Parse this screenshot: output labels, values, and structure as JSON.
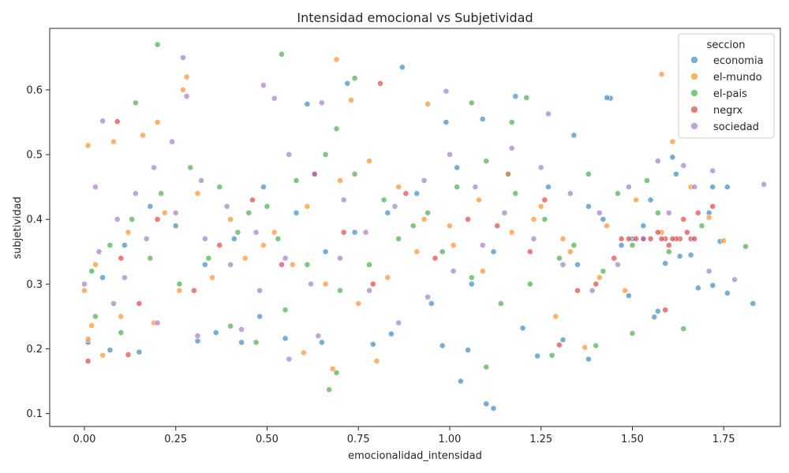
{
  "chart_data": {
    "type": "scatter",
    "title": "Intensidad emocional vs Subjetividad",
    "xlabel": "emocionalidad_intensidad",
    "ylabel": "subjetividad",
    "xlim": [
      -0.095,
      1.905
    ],
    "ylim": [
      0.08,
      0.695
    ],
    "xticks": [
      0.0,
      0.25,
      0.5,
      0.75,
      1.0,
      1.25,
      1.5,
      1.75
    ],
    "xtick_labels": [
      "0.00",
      "0.25",
      "0.50",
      "0.75",
      "1.00",
      "1.25",
      "1.50",
      "1.75"
    ],
    "yticks": [
      0.1,
      0.2,
      0.3,
      0.4,
      0.5,
      0.6
    ],
    "ytick_labels": [
      "0.1",
      "0.2",
      "0.3",
      "0.4",
      "0.5",
      "0.6"
    ],
    "grid": false,
    "legend": {
      "title": "seccion",
      "placement": "top-right"
    },
    "point_opacity": 0.6,
    "series": [
      {
        "name": "economia",
        "color": "#1f77b4",
        "points": [
          [
            0.87,
            0.635
          ],
          [
            0.72,
            0.61
          ],
          [
            1.18,
            0.59
          ],
          [
            1.44,
            0.587
          ],
          [
            1.43,
            0.588
          ],
          [
            0.61,
            0.578
          ],
          [
            0.99,
            0.55
          ],
          [
            1.09,
            0.555
          ],
          [
            1.34,
            0.53
          ],
          [
            1.61,
            0.496
          ],
          [
            1.62,
            0.47
          ],
          [
            1.72,
            0.45
          ],
          [
            1.76,
            0.45
          ],
          [
            1.71,
            0.41
          ],
          [
            1.74,
            0.366
          ],
          [
            1.66,
            0.345
          ],
          [
            1.72,
            0.298
          ],
          [
            1.76,
            0.286
          ],
          [
            1.83,
            0.27
          ],
          [
            1.57,
            0.258
          ],
          [
            1.49,
            0.282
          ],
          [
            1.38,
            0.184
          ],
          [
            1.31,
            0.214
          ],
          [
            1.24,
            0.189
          ],
          [
            1.05,
            0.198
          ],
          [
            1.03,
            0.15
          ],
          [
            1.1,
            0.115
          ],
          [
            1.12,
            0.108
          ],
          [
            0.98,
            0.205
          ],
          [
            0.84,
            0.223
          ],
          [
            0.79,
            0.207
          ],
          [
            0.65,
            0.21
          ],
          [
            0.55,
            0.216
          ],
          [
            0.43,
            0.21
          ],
          [
            0.31,
            0.212
          ],
          [
            0.07,
            0.198
          ],
          [
            0.01,
            0.21
          ],
          [
            0.15,
            0.195
          ],
          [
            0.36,
            0.225
          ],
          [
            0.48,
            0.25
          ],
          [
            1.2,
            0.232
          ],
          [
            1.56,
            0.249
          ],
          [
            1.59,
            0.332
          ],
          [
            1.63,
            0.343
          ],
          [
            1.68,
            0.294
          ],
          [
            1.53,
            0.39
          ],
          [
            1.47,
            0.36
          ],
          [
            1.38,
            0.42
          ],
          [
            1.27,
            0.45
          ],
          [
            1.16,
            0.47
          ],
          [
            1.02,
            0.48
          ],
          [
            0.91,
            0.44
          ],
          [
            0.83,
            0.41
          ],
          [
            0.74,
            0.38
          ],
          [
            0.66,
            0.35
          ],
          [
            0.58,
            0.41
          ],
          [
            0.49,
            0.45
          ],
          [
            0.41,
            0.37
          ],
          [
            0.33,
            0.33
          ],
          [
            0.25,
            0.39
          ],
          [
            0.18,
            0.42
          ],
          [
            0.11,
            0.36
          ],
          [
            0.05,
            0.31
          ],
          [
            1.35,
            0.33
          ],
          [
            1.42,
            0.4
          ],
          [
            1.5,
            0.37
          ],
          [
            1.55,
            0.43
          ],
          [
            1.12,
            0.35
          ],
          [
            1.06,
            0.3
          ],
          [
            0.95,
            0.27
          ]
        ]
      },
      {
        "name": "el-mundo",
        "color": "#ff7f0e",
        "points": [
          [
            0.69,
            0.647
          ],
          [
            0.28,
            0.62
          ],
          [
            0.27,
            0.6
          ],
          [
            1.58,
            0.624
          ],
          [
            0.73,
            0.584
          ],
          [
            0.94,
            0.578
          ],
          [
            0.2,
            0.55
          ],
          [
            0.01,
            0.514
          ],
          [
            0.08,
            0.52
          ],
          [
            0.16,
            0.53
          ],
          [
            1.61,
            0.52
          ],
          [
            1.66,
            0.45
          ],
          [
            1.75,
            0.367
          ],
          [
            1.71,
            0.403
          ],
          [
            1.58,
            0.38
          ],
          [
            1.51,
            0.43
          ],
          [
            1.43,
            0.39
          ],
          [
            1.37,
            0.202
          ],
          [
            1.29,
            0.25
          ],
          [
            0.8,
            0.181
          ],
          [
            0.68,
            0.169
          ],
          [
            0.6,
            0.194
          ],
          [
            0.05,
            0.19
          ],
          [
            0.01,
            0.215
          ],
          [
            0.02,
            0.236
          ],
          [
            0.1,
            0.25
          ],
          [
            0.19,
            0.24
          ],
          [
            0.26,
            0.29
          ],
          [
            0.35,
            0.31
          ],
          [
            0.44,
            0.34
          ],
          [
            0.52,
            0.38
          ],
          [
            0.61,
            0.42
          ],
          [
            0.7,
            0.46
          ],
          [
            0.78,
            0.49
          ],
          [
            0.86,
            0.45
          ],
          [
            0.93,
            0.4
          ],
          [
            1.01,
            0.36
          ],
          [
            1.09,
            0.32
          ],
          [
            1.17,
            0.38
          ],
          [
            1.25,
            0.42
          ],
          [
            1.33,
            0.35
          ],
          [
            1.41,
            0.31
          ],
          [
            1.48,
            0.29
          ],
          [
            0.0,
            0.29
          ],
          [
            0.03,
            0.33
          ],
          [
            0.12,
            0.38
          ],
          [
            0.22,
            0.41
          ],
          [
            0.31,
            0.44
          ],
          [
            0.4,
            0.4
          ],
          [
            0.49,
            0.36
          ],
          [
            0.57,
            0.33
          ],
          [
            0.66,
            0.3
          ],
          [
            0.75,
            0.27
          ],
          [
            0.83,
            0.31
          ],
          [
            0.91,
            0.35
          ],
          [
            1.0,
            0.39
          ],
          [
            1.08,
            0.43
          ],
          [
            1.16,
            0.47
          ],
          [
            1.23,
            0.4
          ],
          [
            1.31,
            0.37
          ]
        ]
      },
      {
        "name": "el-pais",
        "color": "#2ca02c",
        "points": [
          [
            0.2,
            0.67
          ],
          [
            0.54,
            0.655
          ],
          [
            0.74,
            0.618
          ],
          [
            1.21,
            0.588
          ],
          [
            1.06,
            0.58
          ],
          [
            0.14,
            0.58
          ],
          [
            1.17,
            0.55
          ],
          [
            0.69,
            0.54
          ],
          [
            1.81,
            0.358
          ],
          [
            1.64,
            0.231
          ],
          [
            1.5,
            0.224
          ],
          [
            1.4,
            0.205
          ],
          [
            1.28,
            0.19
          ],
          [
            1.1,
            0.172
          ],
          [
            0.69,
            0.163
          ],
          [
            0.67,
            0.137
          ],
          [
            0.55,
            0.26
          ],
          [
            0.47,
            0.21
          ],
          [
            0.4,
            0.235
          ],
          [
            0.1,
            0.225
          ],
          [
            0.03,
            0.25
          ],
          [
            0.02,
            0.32
          ],
          [
            0.07,
            0.36
          ],
          [
            0.13,
            0.4
          ],
          [
            0.21,
            0.44
          ],
          [
            0.29,
            0.48
          ],
          [
            0.37,
            0.45
          ],
          [
            0.45,
            0.41
          ],
          [
            0.53,
            0.37
          ],
          [
            0.61,
            0.33
          ],
          [
            0.7,
            0.29
          ],
          [
            0.78,
            0.33
          ],
          [
            0.86,
            0.37
          ],
          [
            0.94,
            0.41
          ],
          [
            1.02,
            0.45
          ],
          [
            1.1,
            0.49
          ],
          [
            1.18,
            0.44
          ],
          [
            1.26,
            0.4
          ],
          [
            1.34,
            0.36
          ],
          [
            1.42,
            0.32
          ],
          [
            1.5,
            0.36
          ],
          [
            1.57,
            0.41
          ],
          [
            1.54,
            0.46
          ],
          [
            1.46,
            0.44
          ],
          [
            1.38,
            0.47
          ],
          [
            1.3,
            0.34
          ],
          [
            1.22,
            0.3
          ],
          [
            1.14,
            0.27
          ],
          [
            1.06,
            0.31
          ],
          [
            0.98,
            0.35
          ],
          [
            0.9,
            0.39
          ],
          [
            0.82,
            0.43
          ],
          [
            0.74,
            0.47
          ],
          [
            0.66,
            0.5
          ],
          [
            0.58,
            0.46
          ],
          [
            0.5,
            0.42
          ],
          [
            0.42,
            0.38
          ],
          [
            0.34,
            0.34
          ],
          [
            0.26,
            0.3
          ],
          [
            0.18,
            0.34
          ],
          [
            1.69,
            0.39
          ],
          [
            1.6,
            0.35
          ]
        ]
      },
      {
        "name": "negrx",
        "color": "#d62728",
        "points": [
          [
            0.81,
            0.61
          ],
          [
            0.01,
            0.181
          ],
          [
            0.12,
            0.191
          ],
          [
            0.09,
            0.551
          ],
          [
            1.3,
            0.206
          ],
          [
            1.66,
            0.37
          ],
          [
            1.65,
            0.38
          ],
          [
            1.63,
            0.37
          ],
          [
            1.62,
            0.37
          ],
          [
            1.61,
            0.37
          ],
          [
            1.6,
            0.36
          ],
          [
            1.59,
            0.37
          ],
          [
            1.58,
            0.37
          ],
          [
            1.57,
            0.38
          ],
          [
            1.55,
            0.37
          ],
          [
            1.53,
            0.37
          ],
          [
            1.51,
            0.37
          ],
          [
            1.49,
            0.37
          ],
          [
            1.47,
            0.37
          ],
          [
            1.67,
            0.37
          ],
          [
            1.64,
            0.4
          ],
          [
            1.68,
            0.41
          ],
          [
            1.72,
            0.42
          ],
          [
            1.59,
            0.26
          ],
          [
            1.4,
            0.3
          ],
          [
            1.22,
            0.35
          ],
          [
            1.05,
            0.4
          ],
          [
            0.88,
            0.44
          ],
          [
            0.71,
            0.38
          ],
          [
            0.54,
            0.33
          ],
          [
            0.37,
            0.36
          ],
          [
            0.2,
            0.4
          ],
          [
            0.1,
            0.34
          ],
          [
            0.15,
            0.27
          ],
          [
            0.3,
            0.29
          ],
          [
            0.46,
            0.43
          ],
          [
            0.63,
            0.47
          ],
          [
            0.79,
            0.3
          ],
          [
            0.96,
            0.34
          ],
          [
            1.13,
            0.39
          ],
          [
            1.26,
            0.43
          ],
          [
            1.35,
            0.29
          ],
          [
            1.45,
            0.34
          ]
        ]
      },
      {
        "name": "sociedad",
        "color": "#9467bd",
        "points": [
          [
            0.27,
            0.65
          ],
          [
            0.28,
            0.59
          ],
          [
            0.52,
            0.587
          ],
          [
            0.49,
            0.607
          ],
          [
            0.99,
            0.598
          ],
          [
            0.65,
            0.58
          ],
          [
            1.27,
            0.563
          ],
          [
            0.05,
            0.552
          ],
          [
            1.86,
            0.454
          ],
          [
            1.78,
            0.307
          ],
          [
            1.72,
            0.475
          ],
          [
            1.64,
            0.483
          ],
          [
            1.71,
            0.32
          ],
          [
            0.56,
            0.184
          ],
          [
            0.64,
            0.22
          ],
          [
            0.43,
            0.23
          ],
          [
            0.31,
            0.22
          ],
          [
            0.2,
            0.24
          ],
          [
            0.08,
            0.27
          ],
          [
            0.0,
            0.3
          ],
          [
            0.04,
            0.35
          ],
          [
            0.09,
            0.4
          ],
          [
            0.14,
            0.44
          ],
          [
            0.19,
            0.48
          ],
          [
            0.24,
            0.52
          ],
          [
            0.32,
            0.46
          ],
          [
            0.39,
            0.42
          ],
          [
            0.47,
            0.38
          ],
          [
            0.55,
            0.34
          ],
          [
            0.62,
            0.3
          ],
          [
            0.7,
            0.34
          ],
          [
            0.77,
            0.38
          ],
          [
            0.85,
            0.42
          ],
          [
            0.93,
            0.46
          ],
          [
            1.0,
            0.5
          ],
          [
            1.07,
            0.45
          ],
          [
            1.15,
            0.41
          ],
          [
            1.23,
            0.37
          ],
          [
            1.31,
            0.33
          ],
          [
            1.39,
            0.29
          ],
          [
            1.46,
            0.33
          ],
          [
            1.53,
            0.37
          ],
          [
            1.6,
            0.41
          ],
          [
            1.67,
            0.45
          ],
          [
            1.57,
            0.49
          ],
          [
            1.49,
            0.45
          ],
          [
            1.41,
            0.41
          ],
          [
            1.33,
            0.44
          ],
          [
            1.25,
            0.48
          ],
          [
            1.17,
            0.51
          ],
          [
            1.09,
            0.36
          ],
          [
            1.01,
            0.32
          ],
          [
            0.94,
            0.28
          ],
          [
            0.86,
            0.24
          ],
          [
            0.78,
            0.29
          ],
          [
            0.71,
            0.43
          ],
          [
            0.63,
            0.47
          ],
          [
            0.56,
            0.5
          ],
          [
            0.48,
            0.29
          ],
          [
            0.4,
            0.33
          ],
          [
            0.33,
            0.37
          ],
          [
            0.25,
            0.41
          ],
          [
            0.17,
            0.37
          ],
          [
            0.11,
            0.31
          ],
          [
            0.03,
            0.45
          ]
        ]
      }
    ]
  }
}
